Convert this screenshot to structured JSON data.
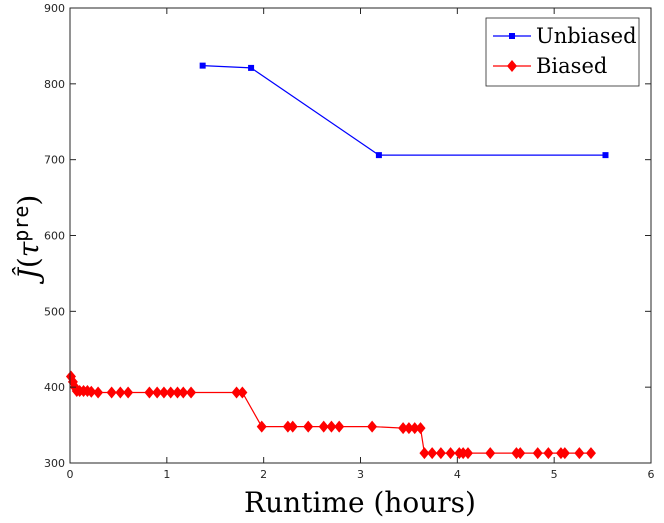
{
  "chart_data": {
    "type": "line",
    "xlabel": "Runtime (hours)",
    "ylabel": "Ĵ(τpre)",
    "xlim": [
      0,
      6
    ],
    "ylim": [
      300,
      900
    ],
    "xticks": [
      0,
      1,
      2,
      3,
      4,
      5,
      6
    ],
    "yticks": [
      300,
      400,
      500,
      600,
      700,
      800,
      900
    ],
    "grid": false,
    "legend_position": "top-right",
    "series": [
      {
        "name": "Unbiased",
        "color": "#0000ff",
        "marker": "square",
        "x": [
          1.37,
          1.87,
          3.19,
          5.53
        ],
        "y": [
          824,
          821,
          706,
          706
        ]
      },
      {
        "name": "Biased",
        "color": "#ff0000",
        "marker": "diamond",
        "x": [
          0.01,
          0.03,
          0.05,
          0.07,
          0.1,
          0.14,
          0.18,
          0.22,
          0.29,
          0.43,
          0.52,
          0.6,
          0.82,
          0.9,
          0.97,
          1.04,
          1.11,
          1.17,
          1.25,
          1.72,
          1.78,
          1.98,
          2.25,
          2.3,
          2.46,
          2.62,
          2.7,
          2.78,
          3.12,
          3.44,
          3.5,
          3.56,
          3.62,
          3.66,
          3.74,
          3.83,
          3.93,
          4.02,
          4.06,
          4.11,
          4.34,
          4.61,
          4.65,
          4.83,
          4.94,
          5.07,
          5.11,
          5.26,
          5.38
        ],
        "y": [
          414,
          407,
          400,
          395,
          395,
          395,
          395,
          394,
          393,
          393,
          393,
          393,
          393,
          393,
          393,
          393,
          393,
          393,
          393,
          393,
          393,
          348,
          348,
          348,
          348,
          348,
          348,
          348,
          348,
          346,
          346,
          346,
          346,
          313,
          313,
          313,
          313,
          313,
          313,
          313,
          313,
          313,
          313,
          313,
          313,
          313,
          313,
          313,
          313
        ]
      }
    ]
  }
}
